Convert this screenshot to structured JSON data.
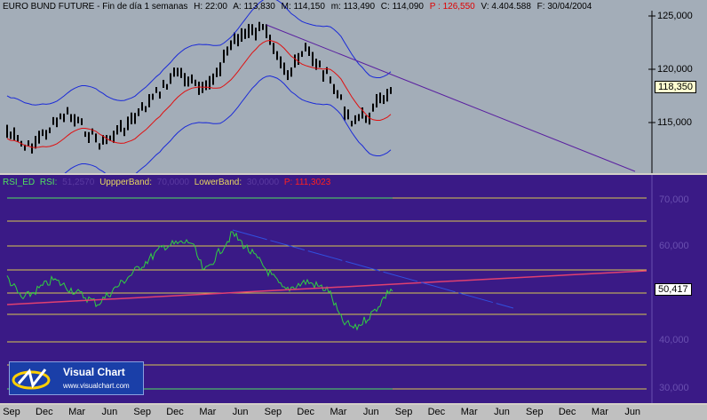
{
  "header": {
    "instrument": "EURO BUND FUTURE - Fin de día 1 semanas",
    "high": "H: 22:00",
    "ask": "A: 113,830",
    "max": "M: 114,150",
    "min": "m: 113,490",
    "close": "C: 114,090",
    "p_value": "P : 126,550",
    "volume": "V: 4.404.588",
    "date": "F: 30/04/2004"
  },
  "price_axis": {
    "labels": [
      "125,000",
      "120,000",
      "115,000"
    ],
    "current": "118,350"
  },
  "rsi_header": {
    "rsi_label": "RSI_ED",
    "rsi_name": "RSI:",
    "rsi_value": "51,2570",
    "upper_label": "UppperBand:",
    "upper_value": "70,0000",
    "lower_label": "LowerBand:",
    "lower_value": "30,0000",
    "p_label": "P: 111,3023"
  },
  "rsi_axis": {
    "labels": [
      "70,000",
      "60,000",
      "40,000",
      "30,000"
    ],
    "current": "50,417"
  },
  "time_axis": [
    "Sep",
    "Dec",
    "Mar",
    "Jun",
    "Sep",
    "Dec",
    "Mar",
    "Jun",
    "Sep",
    "Dec",
    "Mar",
    "Jun",
    "Sep",
    "Dec",
    "Mar",
    "Jun",
    "Sep",
    "Dec",
    "Mar",
    "Jun"
  ],
  "logo": {
    "title": "Visual Chart",
    "url": "www.visualchart.com"
  },
  "colors": {
    "price_bg": "#a3adb8",
    "rsi_bg": "#3a1a86",
    "bollinger": "#1a2ad8",
    "ma": "#e01010",
    "trendline": "#5a20a0",
    "rsi_line": "#30d040",
    "band_line": "#d8c850"
  }
}
